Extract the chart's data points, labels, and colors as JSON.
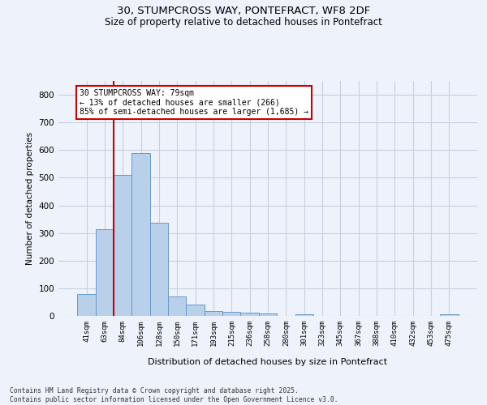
{
  "title_line1": "30, STUMPCROSS WAY, PONTEFRACT, WF8 2DF",
  "title_line2": "Size of property relative to detached houses in Pontefract",
  "xlabel": "Distribution of detached houses by size in Pontefract",
  "ylabel": "Number of detached properties",
  "categories": [
    "41sqm",
    "63sqm",
    "84sqm",
    "106sqm",
    "128sqm",
    "150sqm",
    "171sqm",
    "193sqm",
    "215sqm",
    "236sqm",
    "258sqm",
    "280sqm",
    "301sqm",
    "323sqm",
    "345sqm",
    "367sqm",
    "388sqm",
    "410sqm",
    "432sqm",
    "453sqm",
    "475sqm"
  ],
  "values": [
    80,
    315,
    510,
    590,
    338,
    70,
    42,
    18,
    15,
    12,
    10,
    0,
    7,
    0,
    0,
    0,
    0,
    0,
    0,
    0,
    5
  ],
  "bar_color": "#b8d0ea",
  "bar_edge_color": "#6699cc",
  "vline_color": "#cc0000",
  "ylim": [
    0,
    850
  ],
  "yticks": [
    0,
    100,
    200,
    300,
    400,
    500,
    600,
    700,
    800
  ],
  "annotation_text": "30 STUMPCROSS WAY: 79sqm\n← 13% of detached houses are smaller (266)\n85% of semi-detached houses are larger (1,685) →",
  "annotation_box_color": "#ffffff",
  "annotation_box_edge": "#cc0000",
  "background_color": "#eef2fa",
  "grid_color": "#c8d0e0",
  "footer_line1": "Contains HM Land Registry data © Crown copyright and database right 2025.",
  "footer_line2": "Contains public sector information licensed under the Open Government Licence v3.0."
}
